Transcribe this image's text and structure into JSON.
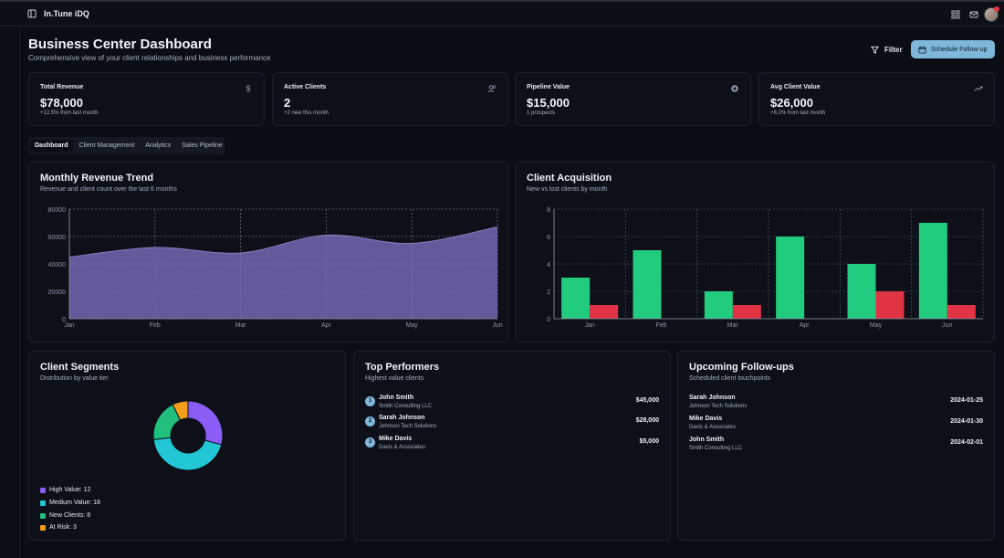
{
  "app": {
    "title": "In.Tune iDQ"
  },
  "header": {
    "title": "Business Center Dashboard",
    "subtitle": "Comprehensive view of your client relationships and business performance",
    "filter_label": "Filter",
    "schedule_label": "Schedule Follow-up"
  },
  "stats": [
    {
      "label": "Total Revenue",
      "value": "$78,000",
      "sub": "+12.5% from last month",
      "icon": "dollar-icon"
    },
    {
      "label": "Active Clients",
      "value": "2",
      "sub": "+2 new this month",
      "icon": "users-icon"
    },
    {
      "label": "Pipeline Value",
      "value": "$15,000",
      "sub": "1 prospects",
      "icon": "target-icon"
    },
    {
      "label": "Avg Client Value",
      "value": "$26,000",
      "sub": "+8.2% from last month",
      "icon": "trending-up-icon"
    }
  ],
  "tabs": [
    {
      "label": "Dashboard",
      "active": true
    },
    {
      "label": "Client Management",
      "active": false
    },
    {
      "label": "Analytics",
      "active": false
    },
    {
      "label": "Sales Pipeline",
      "active": false
    }
  ],
  "revenue_card": {
    "title": "Monthly Revenue Trend",
    "subtitle": "Revenue and client count over the last 6 months"
  },
  "acquisition_card": {
    "title": "Client Acquisition",
    "subtitle": "New vs lost clients by month"
  },
  "segments_card": {
    "title": "Client Segments",
    "subtitle": "Distribution by value tier"
  },
  "performers_card": {
    "title": "Top Performers",
    "subtitle": "Highest value clients",
    "items": [
      {
        "rank": "1",
        "name": "John Smith",
        "company": "Smith Consulting LLC",
        "amount": "$45,000"
      },
      {
        "rank": "2",
        "name": "Sarah Johnson",
        "company": "Johnson Tech Solutions",
        "amount": "$28,000"
      },
      {
        "rank": "3",
        "name": "Mike Davis",
        "company": "Davis & Associates",
        "amount": "$5,000"
      }
    ]
  },
  "followups_card": {
    "title": "Upcoming Follow-ups",
    "subtitle": "Scheduled client touchpoints",
    "items": [
      {
        "name": "Sarah Johnson",
        "company": "Johnson Tech Solutions",
        "date": "2024-01-25"
      },
      {
        "name": "Mike Davis",
        "company": "Davis & Associates",
        "date": "2024-01-30"
      },
      {
        "name": "John Smith",
        "company": "Smith Consulting LLC",
        "date": "2024-02-01"
      }
    ]
  },
  "colors": {
    "area_fill": "#6b5fa6",
    "area_stroke": "#8a7fc4",
    "new_bar": "#22cc7e",
    "lost_bar": "#e03445",
    "high_value": "#8b5cf6",
    "medium_value": "#22c7d6",
    "new_clients": "#22c07e",
    "at_risk": "#f59e1b",
    "accent": "#7fb7da"
  },
  "chart_data": [
    {
      "type": "area",
      "x": [
        "Jan",
        "Feb",
        "Mar",
        "Apr",
        "May",
        "Jun"
      ],
      "values": [
        45000,
        52000,
        48000,
        61000,
        55000,
        67000
      ],
      "ylim": [
        0,
        80000
      ],
      "yticks": [
        0,
        20000,
        40000,
        60000,
        80000
      ],
      "grid": true
    },
    {
      "type": "bar",
      "categories": [
        "Jan",
        "Feb",
        "Mar",
        "Apr",
        "May",
        "Jun"
      ],
      "series": [
        {
          "values": [
            3,
            5,
            2,
            6,
            4,
            7
          ]
        },
        {
          "values": [
            1,
            0,
            1,
            0,
            2,
            1
          ]
        }
      ],
      "ylim": [
        0,
        8
      ],
      "yticks": [
        0,
        2,
        4,
        6,
        8
      ],
      "grid": true
    },
    {
      "type": "pie",
      "donut": true,
      "slices": [
        {
          "label": "High Value",
          "value": 12
        },
        {
          "label": "Medium Value",
          "value": 18
        },
        {
          "label": "New Clients",
          "value": 8
        },
        {
          "label": "At Risk",
          "value": 3
        }
      ],
      "legend": [
        "High Value: 12",
        "Medium Value: 18",
        "New Clients: 8",
        "At Risk: 3"
      ]
    }
  ]
}
